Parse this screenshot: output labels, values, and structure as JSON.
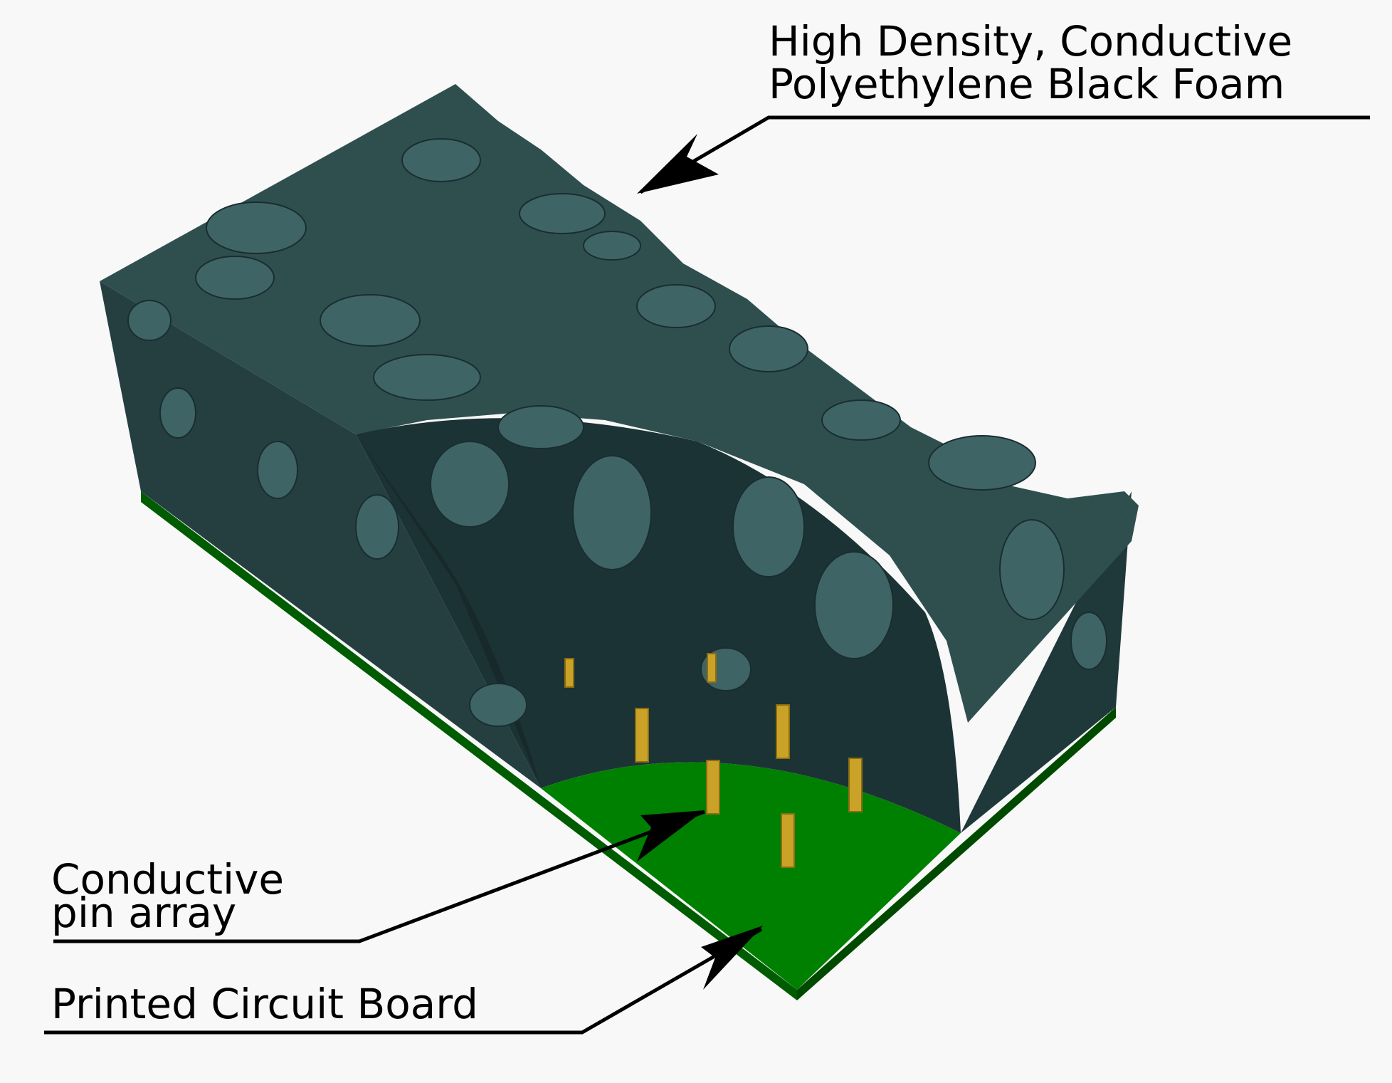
{
  "labels": {
    "foam_line1": "High Density, Conductive",
    "foam_line2": "Polyethylene Black Foam",
    "pins_line1": "Conductive",
    "pins_line2": "pin array",
    "pcb": "Printed Circuit Board"
  },
  "colors": {
    "background": "#f8f8f8",
    "foam_top": "#2f4f4f",
    "foam_side": "#253f41",
    "foam_inner": "#1c3335",
    "pcb": "#008000",
    "pcb_edge": "#005c00",
    "pins": "#c9a227",
    "leader": "#000000"
  }
}
